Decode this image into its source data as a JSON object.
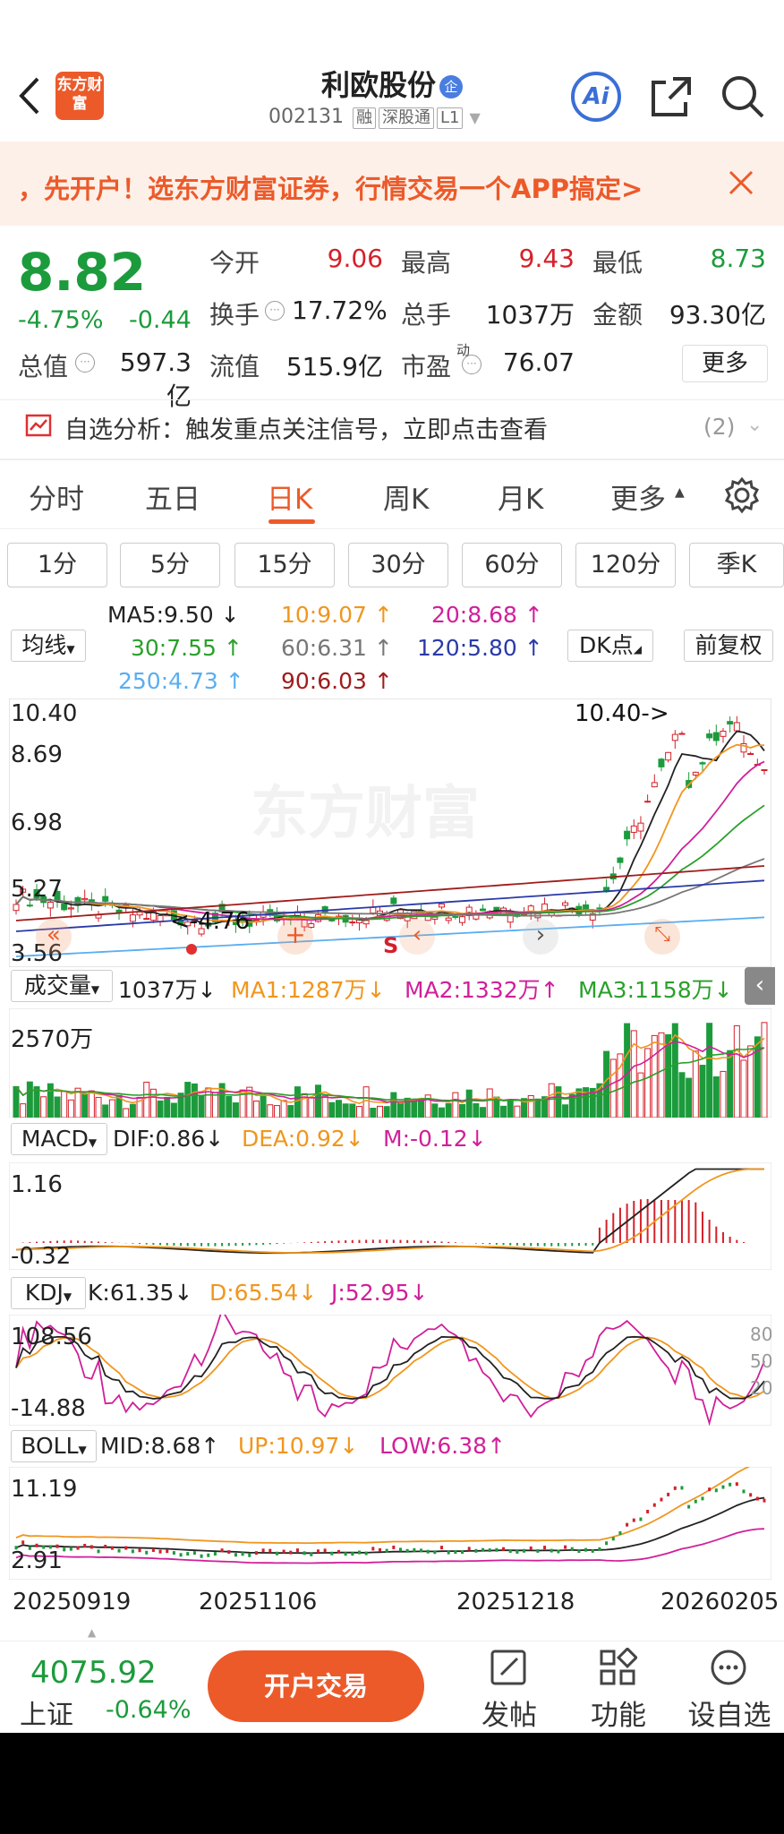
{
  "header": {
    "logo_text": "东方财富",
    "stock_name": "利欧股份",
    "badge": "企",
    "code": "002131",
    "tags": [
      "融",
      "深股通",
      "L1"
    ],
    "ai_label": "Ai"
  },
  "banner": {
    "text": "，先开户！选东方财富证券，行情交易一个APP搞定>"
  },
  "quote": {
    "price": "8.82",
    "change_pct": "-4.75%",
    "change": "-0.44",
    "open_label": "今开",
    "open": "9.06",
    "high_label": "最高",
    "high": "9.43",
    "low_label": "最低",
    "low": "8.73",
    "turnover_label": "换手",
    "turnover": "17.72%",
    "volume_label": "总手",
    "volume": "1037万",
    "amount_label": "金额",
    "amount": "93.30亿",
    "mktcap_label": "总值",
    "mktcap": "597.3亿",
    "float_label": "流值",
    "float": "515.9亿",
    "pe_label": "市盈",
    "pe_sup": "动",
    "pe": "76.07",
    "more": "更多"
  },
  "analysis": {
    "text": "自选分析：触发重点关注信号，立即点击查看",
    "count": "(2)"
  },
  "tabs": [
    "分时",
    "五日",
    "日K",
    "周K",
    "月K",
    "更多"
  ],
  "periods": [
    "1分",
    "5分",
    "15分",
    "30分",
    "60分",
    "120分",
    "季K"
  ],
  "ma": {
    "selector": "均线",
    "ma5": "MA5:9.50",
    "ma10": "10:9.07",
    "ma20": "20:8.68",
    "ma30": "30:7.55",
    "ma60": "60:6.31",
    "ma120": "120:5.80",
    "ma250": "250:4.73",
    "ma90": "90:6.03",
    "dk": "DK点",
    "fq": "前复权",
    "up": "↑",
    "down": "↓"
  },
  "kline": {
    "axis": [
      "10.40",
      "8.69",
      "6.98",
      "5.27",
      "3.56"
    ],
    "max_label": "10.40->",
    "min_label": "<-4.76",
    "s_mark": "S",
    "watermark": "东方财富"
  },
  "volume": {
    "selector": "成交量",
    "value": "1037万",
    "ma1": "MA1:1287万",
    "ma2": "MA2:1332万",
    "ma3": "MA3:1158万",
    "axis_max": "2570万"
  },
  "macd": {
    "selector": "MACD",
    "dif": "DIF:0.86",
    "dea": "DEA:0.92",
    "m": "M:-0.12",
    "axis_top": "1.16",
    "axis_bottom": "-0.32"
  },
  "kdj": {
    "selector": "KDJ",
    "k": "K:61.35",
    "d": "D:65.54",
    "j": "J:52.95",
    "axis_top": "108.56",
    "axis_bottom": "-14.88",
    "r80": "80",
    "r50": "50",
    "r20": "20"
  },
  "boll": {
    "selector": "BOLL",
    "mid": "MID:8.68",
    "up": "UP:10.97",
    "low": "LOW:6.38",
    "axis_top": "11.19",
    "axis_bottom": "2.91"
  },
  "dates": [
    "20250919",
    "20251106",
    "20251218",
    "20260205"
  ],
  "bottom": {
    "index_value": "4075.92",
    "index_name": "上证",
    "index_change": "-0.64%",
    "open_account": "开户交易",
    "post": "发帖",
    "function": "功能",
    "add_watch": "设自选"
  },
  "colors": {
    "accent": "#ec5a2a",
    "up": "#d5202a",
    "down": "#1c9b3c",
    "ma5": "#222222",
    "ma10": "#f0961e",
    "ma20": "#d0209a",
    "ma30": "#2aa02a",
    "ma60": "#777777",
    "ma120": "#2a3aa8",
    "ma250": "#5aaef0",
    "ma90": "#a01c1c"
  }
}
